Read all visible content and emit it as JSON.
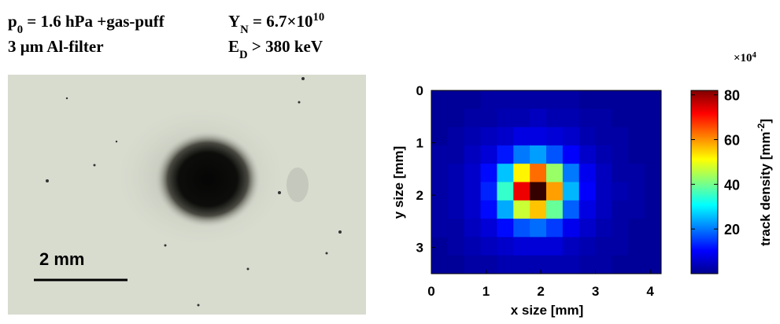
{
  "chart_data": {
    "type": "heatmap",
    "annotations": [
      [
        {
          "t": "p"
        },
        {
          "t": "0",
          "s": "sub"
        },
        {
          "t": " = 1.6 hPa +gas-puff"
        }
      ],
      [
        {
          "t": "Y"
        },
        {
          "t": "N",
          "s": "sub"
        },
        {
          "t": " = 6.7×10"
        },
        {
          "t": "10",
          "s": "sup"
        }
      ],
      [
        {
          "t": "3 μm Al-filter"
        }
      ],
      [
        {
          "t": "E"
        },
        {
          "t": "D",
          "s": "sub"
        },
        {
          "t": " > 380 keV"
        }
      ]
    ],
    "photo_scale_bar": "2 mm",
    "xlabel": "x size [mm]",
    "ylabel": "y size [mm]",
    "xlim": [
      0,
      4.2
    ],
    "ylim": [
      0,
      3.5
    ],
    "xticks": [
      0,
      1,
      2,
      3,
      4
    ],
    "yticks": [
      0,
      1,
      2,
      3
    ],
    "x": [
      0.15,
      0.45,
      0.75,
      1.05,
      1.35,
      1.65,
      1.95,
      2.25,
      2.55,
      2.85,
      3.15,
      3.45,
      3.75,
      4.05
    ],
    "y": [
      0.175,
      0.525,
      0.875,
      1.225,
      1.575,
      1.925,
      2.275,
      2.625,
      2.975,
      3.325
    ],
    "z": [
      [
        2,
        2,
        2,
        3,
        3,
        3,
        3,
        3,
        3,
        2,
        2,
        2,
        2,
        2
      ],
      [
        2,
        2,
        3,
        3,
        4,
        4,
        5,
        4,
        4,
        3,
        3,
        2,
        2,
        2
      ],
      [
        2,
        3,
        4,
        5,
        6,
        8,
        8,
        7,
        6,
        4,
        3,
        3,
        2,
        2
      ],
      [
        3,
        3,
        5,
        7,
        12,
        20,
        23,
        17,
        10,
        6,
        4,
        3,
        2,
        2
      ],
      [
        3,
        4,
        6,
        11,
        26,
        52,
        63,
        43,
        20,
        9,
        5,
        3,
        3,
        2
      ],
      [
        3,
        4,
        6,
        13,
        35,
        73,
        88,
        59,
        25,
        10,
        5,
        4,
        3,
        2
      ],
      [
        3,
        4,
        6,
        11,
        24,
        47,
        56,
        39,
        18,
        8,
        5,
        3,
        3,
        2
      ],
      [
        3,
        3,
        5,
        7,
        11,
        17,
        19,
        15,
        9,
        6,
        4,
        3,
        2,
        2
      ],
      [
        2,
        3,
        4,
        5,
        6,
        7,
        7,
        7,
        5,
        4,
        3,
        3,
        2,
        2
      ],
      [
        2,
        2,
        3,
        3,
        4,
        4,
        4,
        4,
        4,
        3,
        3,
        2,
        2,
        2
      ]
    ],
    "colormap": "jet",
    "colorbar": {
      "clim": [
        0,
        82
      ],
      "ticks": [
        20,
        40,
        60,
        80
      ],
      "multiplier": [
        {
          "t": "×10"
        },
        {
          "t": "4",
          "s": "sup"
        }
      ],
      "label": [
        {
          "t": "track density [mm"
        },
        {
          "t": "-2",
          "s": "sup"
        },
        {
          "t": "]"
        }
      ]
    }
  }
}
